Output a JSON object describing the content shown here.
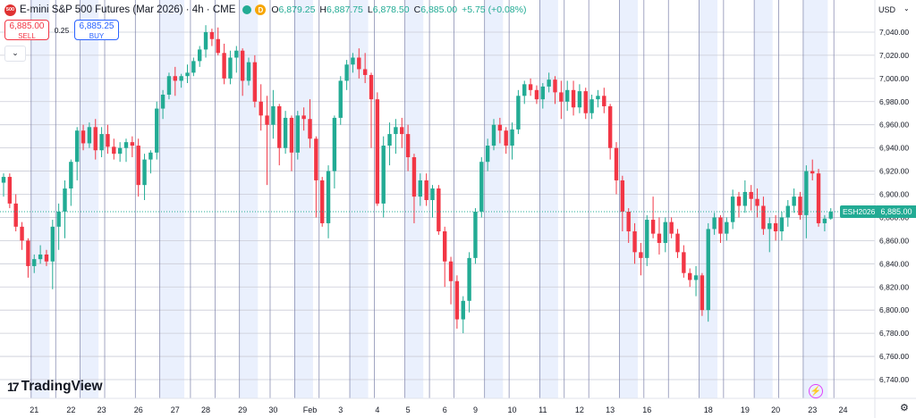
{
  "header": {
    "logo_text": "500",
    "title": "E-mini S&P 500 Futures (Mar 2026) · 4h · CME",
    "d_badge": "D",
    "ohlc": [
      {
        "k": "O",
        "v": "6,879.25"
      },
      {
        "k": "H",
        "v": "6,887.75"
      },
      {
        "k": "L",
        "v": "6,878.50"
      },
      {
        "k": "C",
        "v": "6,885.00"
      },
      {
        "k": "",
        "v": "+5.75 (+0.08%)"
      }
    ]
  },
  "trade": {
    "sell_price": "6,885.00",
    "sell_label": "SELL",
    "spread": "0.25",
    "buy_price": "6,885.25",
    "buy_label": "BUY"
  },
  "axis": {
    "currency": "USD",
    "symbol_tag": "ESH2026",
    "last_price": "6,885.00"
  },
  "branding": {
    "tradingview": "TradingView"
  },
  "colors": {
    "up": "#22ab94",
    "down": "#f23645",
    "shade": "#eaf0fd",
    "session_line": "#7b80a9",
    "grid": "#f0f3fa"
  },
  "chart_data": {
    "type": "candlestick",
    "timeframe": "4h",
    "ylim": [
      6730,
      7060
    ],
    "yticks": [
      6740,
      6760,
      6780,
      6800,
      6820,
      6840,
      6860,
      6880,
      6900,
      6920,
      6940,
      6960,
      6980,
      7000,
      7020,
      7040
    ],
    "ytick_labels": [
      "6,740.00",
      "6,760.00",
      "6,780.00",
      "6,800.00",
      "6,820.00",
      "6,840.00",
      "6,860.00",
      "6,880.00",
      "6,900.00",
      "6,920.00",
      "6,940.00",
      "6,960.00",
      "6,980.00",
      "7,000.00",
      "7,020.00",
      "7,040.00"
    ],
    "xticks": [
      {
        "label": "21",
        "i": 5
      },
      {
        "label": "22",
        "i": 11
      },
      {
        "label": "23",
        "i": 16
      },
      {
        "label": "26",
        "i": 22
      },
      {
        "label": "27",
        "i": 28
      },
      {
        "label": "28",
        "i": 33
      },
      {
        "label": "29",
        "i": 39
      },
      {
        "label": "30",
        "i": 44
      },
      {
        "label": "Feb",
        "i": 50
      },
      {
        "label": "3",
        "i": 55
      },
      {
        "label": "4",
        "i": 61
      },
      {
        "label": "5",
        "i": 66
      },
      {
        "label": "6",
        "i": 72
      },
      {
        "label": "9",
        "i": 77
      },
      {
        "label": "10",
        "i": 83
      },
      {
        "label": "11",
        "i": 88
      },
      {
        "label": "12",
        "i": 94
      },
      {
        "label": "13",
        "i": 99
      },
      {
        "label": "16",
        "i": 105
      },
      {
        "label": "18",
        "i": 115
      },
      {
        "label": "19",
        "i": 121
      },
      {
        "label": "20",
        "i": 126
      },
      {
        "label": "23",
        "i": 132
      },
      {
        "label": "24",
        "i": 137
      }
    ],
    "session_breaks": [
      4,
      8,
      12,
      16,
      21,
      25,
      30,
      34,
      38,
      43,
      47,
      51,
      56,
      60,
      65,
      69,
      73,
      78,
      82,
      87,
      91,
      95,
      100,
      104,
      108,
      113,
      117,
      122,
      126,
      130,
      135
    ],
    "shaded_ranges": [
      [
        5,
        7
      ],
      [
        13,
        15
      ],
      [
        26,
        29
      ],
      [
        39,
        41
      ],
      [
        48,
        50
      ],
      [
        57,
        59
      ],
      [
        66,
        68
      ],
      [
        79,
        81
      ],
      [
        88,
        90
      ],
      [
        101,
        103
      ],
      [
        114,
        116
      ],
      [
        123,
        125
      ],
      [
        131,
        134
      ]
    ],
    "candles": [
      [
        6910,
        6918,
        6898,
        6915
      ],
      [
        6915,
        6918,
        6888,
        6892
      ],
      [
        6892,
        6900,
        6868,
        6872
      ],
      [
        6872,
        6876,
        6852,
        6860
      ],
      [
        6860,
        6862,
        6828,
        6838
      ],
      [
        6838,
        6848,
        6832,
        6844
      ],
      [
        6844,
        6856,
        6840,
        6848
      ],
      [
        6848,
        6852,
        6838,
        6842
      ],
      [
        6842,
        6878,
        6818,
        6872
      ],
      [
        6872,
        6892,
        6852,
        6885
      ],
      [
        6885,
        6912,
        6862,
        6905
      ],
      [
        6905,
        6930,
        6890,
        6928
      ],
      [
        6928,
        6958,
        6912,
        6955
      ],
      [
        6955,
        6960,
        6938,
        6944
      ],
      [
        6944,
        6962,
        6940,
        6958
      ],
      [
        6958,
        6965,
        6930,
        6938
      ],
      [
        6938,
        6958,
        6932,
        6952
      ],
      [
        6952,
        6960,
        6935,
        6941
      ],
      [
        6941,
        6948,
        6930,
        6935
      ],
      [
        6935,
        6945,
        6928,
        6940
      ],
      [
        6940,
        6948,
        6928,
        6945
      ],
      [
        6945,
        6950,
        6932,
        6942
      ],
      [
        6942,
        6948,
        6898,
        6908
      ],
      [
        6908,
        6935,
        6895,
        6930
      ],
      [
        6930,
        6938,
        6918,
        6936
      ],
      [
        6936,
        6980,
        6930,
        6974
      ],
      [
        6974,
        6990,
        6965,
        6986
      ],
      [
        6986,
        7005,
        6982,
        7002
      ],
      [
        7002,
        7010,
        6985,
        6998
      ],
      [
        6998,
        7004,
        6992,
        7002
      ],
      [
        7002,
        7012,
        6996,
        7005
      ],
      [
        7005,
        7018,
        7002,
        7015
      ],
      [
        7015,
        7028,
        7010,
        7025
      ],
      [
        7025,
        7046,
        7018,
        7040
      ],
      [
        7040,
        7043,
        7028,
        7034
      ],
      [
        7034,
        7044,
        7020,
        7022
      ],
      [
        7022,
        7030,
        6995,
        7000
      ],
      [
        7000,
        7024,
        6995,
        7018
      ],
      [
        7018,
        7028,
        7005,
        7024
      ],
      [
        7024,
        7026,
        6985,
        6998
      ],
      [
        6998,
        7018,
        6994,
        7014
      ],
      [
        7014,
        7020,
        6975,
        6980
      ],
      [
        6980,
        6995,
        6955,
        6968
      ],
      [
        6968,
        6985,
        6908,
        6960
      ],
      [
        6960,
        6990,
        6948,
        6976
      ],
      [
        6976,
        6978,
        6925,
        6940
      ],
      [
        6940,
        6972,
        6935,
        6966
      ],
      [
        6966,
        6968,
        6920,
        6936
      ],
      [
        6936,
        6972,
        6930,
        6968
      ],
      [
        6968,
        6975,
        6955,
        6965
      ],
      [
        6965,
        6982,
        6940,
        6948
      ],
      [
        6948,
        6950,
        6880,
        6912
      ],
      [
        6912,
        6915,
        6872,
        6875
      ],
      [
        6875,
        6925,
        6862,
        6920
      ],
      [
        6920,
        6968,
        6905,
        6966
      ],
      [
        6966,
        7002,
        6960,
        6998
      ],
      [
        6998,
        7016,
        6990,
        7012
      ],
      [
        7012,
        7022,
        7005,
        7018
      ],
      [
        7018,
        7026,
        7000,
        7008
      ],
      [
        7008,
        7022,
        6996,
        7003
      ],
      [
        7003,
        7005,
        6940,
        6982
      ],
      [
        6982,
        6988,
        6890,
        6892
      ],
      [
        6892,
        6950,
        6880,
        6942
      ],
      [
        6942,
        6962,
        6925,
        6952
      ],
      [
        6952,
        6965,
        6935,
        6958
      ],
      [
        6958,
        6966,
        6940,
        6952
      ],
      [
        6952,
        6960,
        6920,
        6932
      ],
      [
        6932,
        6935,
        6875,
        6898
      ],
      [
        6898,
        6918,
        6890,
        6912
      ],
      [
        6912,
        6918,
        6890,
        6895
      ],
      [
        6895,
        6908,
        6880,
        6905
      ],
      [
        6905,
        6908,
        6865,
        6868
      ],
      [
        6868,
        6872,
        6820,
        6842
      ],
      [
        6842,
        6846,
        6805,
        6825
      ],
      [
        6825,
        6830,
        6784,
        6792
      ],
      [
        6792,
        6812,
        6780,
        6808
      ],
      [
        6808,
        6850,
        6798,
        6845
      ],
      [
        6845,
        6888,
        6840,
        6885
      ],
      [
        6885,
        6932,
        6880,
        6928
      ],
      [
        6928,
        6948,
        6920,
        6942
      ],
      [
        6942,
        6965,
        6938,
        6960
      ],
      [
        6960,
        6966,
        6944,
        6955
      ],
      [
        6955,
        6958,
        6935,
        6942
      ],
      [
        6942,
        6962,
        6930,
        6956
      ],
      [
        6956,
        6990,
        6952,
        6985
      ],
      [
        6985,
        6998,
        6978,
        6995
      ],
      [
        6995,
        7000,
        6985,
        6990
      ],
      [
        6990,
        6994,
        6978,
        6982
      ],
      [
        6982,
        6996,
        6974,
        6993
      ],
      [
        6993,
        7005,
        6988,
        6999
      ],
      [
        6999,
        7002,
        6978,
        6988
      ],
      [
        6988,
        6998,
        6965,
        6980
      ],
      [
        6980,
        6998,
        6972,
        6990
      ],
      [
        6990,
        6998,
        6968,
        6975
      ],
      [
        6975,
        6995,
        6970,
        6989
      ],
      [
        6989,
        6992,
        6965,
        6970
      ],
      [
        6970,
        6986,
        6965,
        6982
      ],
      [
        6982,
        6990,
        6975,
        6985
      ],
      [
        6985,
        6992,
        6970,
        6976
      ],
      [
        6976,
        6978,
        6930,
        6940
      ],
      [
        6940,
        6945,
        6900,
        6912
      ],
      [
        6912,
        6916,
        6868,
        6885
      ],
      [
        6885,
        6888,
        6858,
        6868
      ],
      [
        6868,
        6875,
        6840,
        6850
      ],
      [
        6850,
        6858,
        6830,
        6845
      ],
      [
        6845,
        6882,
        6838,
        6878
      ],
      [
        6878,
        6898,
        6862,
        6866
      ],
      [
        6866,
        6880,
        6848,
        6858
      ],
      [
        6858,
        6880,
        6850,
        6876
      ],
      [
        6876,
        6880,
        6862,
        6866
      ],
      [
        6866,
        6870,
        6845,
        6850
      ],
      [
        6850,
        6856,
        6828,
        6832
      ],
      [
        6832,
        6836,
        6820,
        6826
      ],
      [
        6826,
        6838,
        6812,
        6830
      ],
      [
        6830,
        6832,
        6795,
        6800
      ],
      [
        6800,
        6875,
        6790,
        6870
      ],
      [
        6870,
        6884,
        6865,
        6880
      ],
      [
        6880,
        6882,
        6858,
        6866
      ],
      [
        6866,
        6880,
        6860,
        6876
      ],
      [
        6876,
        6904,
        6870,
        6898
      ],
      [
        6898,
        6902,
        6880,
        6890
      ],
      [
        6890,
        6912,
        6884,
        6902
      ],
      [
        6902,
        6908,
        6886,
        6896
      ],
      [
        6896,
        6905,
        6880,
        6890
      ],
      [
        6890,
        6898,
        6865,
        6870
      ],
      [
        6870,
        6880,
        6850,
        6875
      ],
      [
        6875,
        6882,
        6860,
        6868
      ],
      [
        6868,
        6885,
        6860,
        6880
      ],
      [
        6880,
        6895,
        6872,
        6890
      ],
      [
        6890,
        6905,
        6884,
        6898
      ],
      [
        6898,
        6902,
        6878,
        6882
      ],
      [
        6882,
        6925,
        6862,
        6920
      ],
      [
        6920,
        6930,
        6912,
        6918
      ],
      [
        6918,
        6922,
        6872,
        6875
      ],
      [
        6875,
        6882,
        6868,
        6879
      ],
      [
        6879,
        6888,
        6878,
        6885
      ]
    ]
  }
}
